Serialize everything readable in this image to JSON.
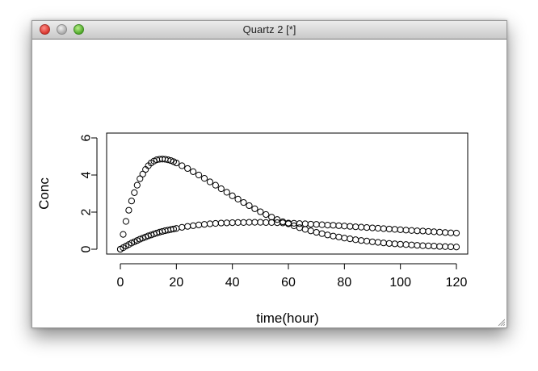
{
  "window": {
    "title": "Quartz 2 [*]",
    "controls": [
      "close",
      "minimize",
      "zoom"
    ]
  },
  "chart_data": {
    "type": "scatter",
    "title": "",
    "xlabel": "time(hour)",
    "ylabel": "Conc",
    "xlim": [
      0,
      120
    ],
    "ylim": [
      0,
      6
    ],
    "x_ticks": [
      0,
      20,
      40,
      60,
      80,
      100,
      120
    ],
    "y_ticks": [
      0,
      2,
      4,
      6
    ],
    "marker": "open-circle",
    "grid": false,
    "series": [
      {
        "x": [
          0,
          1,
          2,
          3,
          4,
          5,
          6,
          7,
          8,
          9,
          10,
          11,
          12,
          13,
          14,
          15,
          16,
          17,
          18,
          19,
          20,
          22,
          24,
          26,
          28,
          30,
          32,
          34,
          36,
          38,
          40,
          42,
          44,
          46,
          48,
          50,
          52,
          54,
          56,
          58,
          60,
          62,
          64,
          66,
          68,
          70,
          72,
          74,
          76,
          78,
          80,
          82,
          84,
          86,
          88,
          90,
          92,
          94,
          96,
          98,
          100,
          102,
          104,
          106,
          108,
          110,
          112,
          114,
          116,
          118,
          120
        ],
        "y": [
          0,
          0.8,
          1.5,
          2.1,
          2.6,
          3.05,
          3.45,
          3.8,
          4.05,
          4.3,
          4.5,
          4.65,
          4.75,
          4.82,
          4.85,
          4.86,
          4.85,
          4.82,
          4.78,
          4.72,
          4.65,
          4.5,
          4.35,
          4.18,
          4.0,
          3.82,
          3.63,
          3.45,
          3.26,
          3.07,
          2.88,
          2.7,
          2.52,
          2.35,
          2.18,
          2.02,
          1.87,
          1.73,
          1.6,
          1.48,
          1.37,
          1.26,
          1.16,
          1.07,
          0.99,
          0.91,
          0.84,
          0.77,
          0.71,
          0.66,
          0.6,
          0.56,
          0.51,
          0.47,
          0.44,
          0.4,
          0.37,
          0.34,
          0.31,
          0.29,
          0.27,
          0.25,
          0.23,
          0.21,
          0.19,
          0.18,
          0.17,
          0.15,
          0.14,
          0.13,
          0.12
        ]
      },
      {
        "x": [
          0,
          1,
          2,
          3,
          4,
          5,
          6,
          7,
          8,
          9,
          10,
          11,
          12,
          13,
          14,
          15,
          16,
          17,
          18,
          19,
          20,
          22,
          24,
          26,
          28,
          30,
          32,
          34,
          36,
          38,
          40,
          42,
          44,
          46,
          48,
          50,
          52,
          54,
          56,
          58,
          60,
          62,
          64,
          66,
          68,
          70,
          72,
          74,
          76,
          78,
          80,
          82,
          84,
          86,
          88,
          90,
          92,
          94,
          96,
          98,
          100,
          102,
          104,
          106,
          108,
          110,
          112,
          114,
          116,
          118,
          120
        ],
        "y": [
          0,
          0.08,
          0.17,
          0.25,
          0.33,
          0.4,
          0.47,
          0.54,
          0.6,
          0.66,
          0.72,
          0.77,
          0.82,
          0.87,
          0.92,
          0.96,
          1.0,
          1.03,
          1.06,
          1.09,
          1.12,
          1.18,
          1.23,
          1.27,
          1.31,
          1.34,
          1.37,
          1.39,
          1.41,
          1.42,
          1.43,
          1.44,
          1.44,
          1.45,
          1.45,
          1.45,
          1.44,
          1.44,
          1.43,
          1.42,
          1.41,
          1.4,
          1.38,
          1.37,
          1.35,
          1.34,
          1.32,
          1.3,
          1.29,
          1.27,
          1.25,
          1.23,
          1.21,
          1.19,
          1.17,
          1.15,
          1.13,
          1.11,
          1.09,
          1.07,
          1.05,
          1.03,
          1.01,
          0.99,
          0.98,
          0.96,
          0.94,
          0.92,
          0.9,
          0.88,
          0.87
        ]
      }
    ]
  }
}
